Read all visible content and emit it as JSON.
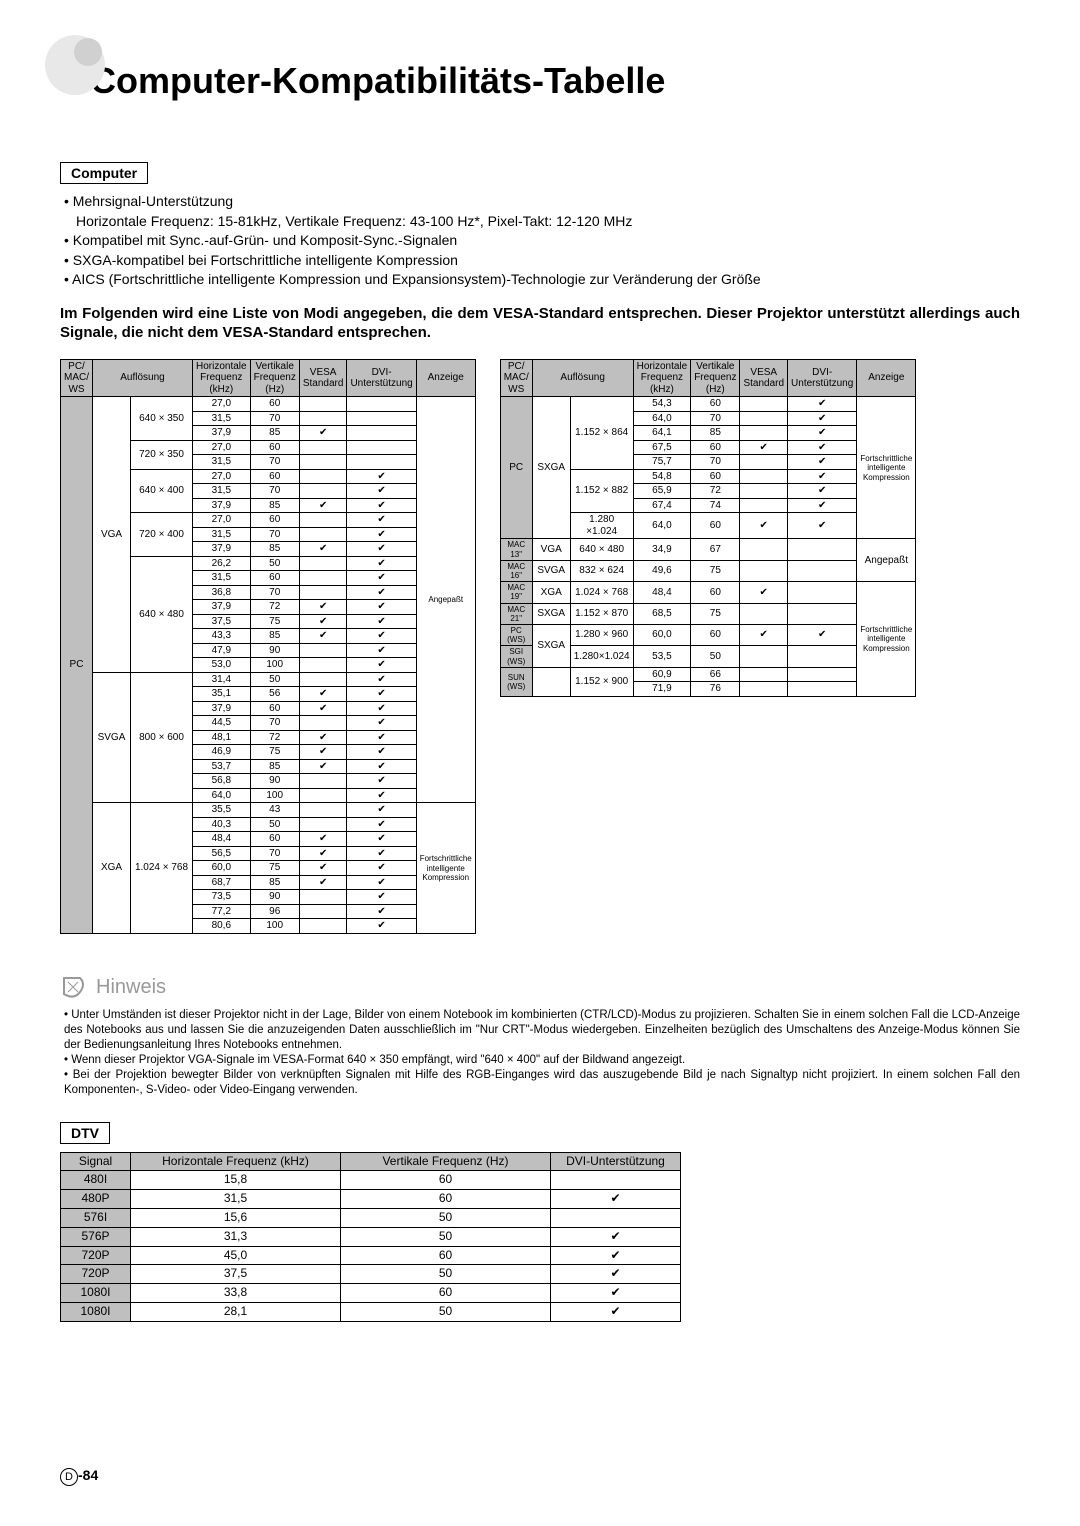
{
  "title": "Computer-Kompatibilitäts-Tabelle",
  "section_computer": "Computer",
  "bullets": {
    "b1": "Mehrsignal-Unterstützung",
    "b1sub": "Horizontale Frequenz: 15-81kHz, Vertikale Frequenz: 43-100 Hz*, Pixel-Takt: 12-120 MHz",
    "b2": "Kompatibel mit Sync.-auf-Grün- und Komposit-Sync.-Signalen",
    "b3": "SXGA-kompatibel bei Fortschrittliche intelligente Kompression",
    "b4": "AICS (Fortschrittliche intelligente Kompression und Expansionsystem)-Technologie zur Veränderung der Größe"
  },
  "bold_para": "Im Folgenden wird eine Liste von Modi angegeben, die dem VESA-Standard entsprechen. Dieser Projektor unterstützt allerdings auch Signale, die nicht dem VESA-Standard entsprechen.",
  "headers": {
    "h1": "PC/ MAC/ WS",
    "h2": "Auflösung",
    "h3": "Horizontale Frequenz (kHz)",
    "h4": "Vertikale Frequenz (Hz)",
    "h5": "VESA Standard",
    "h6": "DVI-Unterstützung",
    "h7": "Anzeige"
  },
  "t1": {
    "pc": "PC",
    "vga": "VGA",
    "svga": "SVGA",
    "xga": "XGA",
    "res1": "640 × 350",
    "res2": "720 × 350",
    "res3": "640 × 400",
    "res4": "720 × 400",
    "res5": "640 × 480",
    "res6": "800 × 600",
    "res7": "1.024 × 768",
    "anz1": "Angepaßt",
    "anz2": "Fortschrittliche intelligente Kompression",
    "rows": [
      [
        "27,0",
        "60",
        "",
        ""
      ],
      [
        "31,5",
        "70",
        "",
        ""
      ],
      [
        "37,9",
        "85",
        "✔",
        ""
      ],
      [
        "27,0",
        "60",
        "",
        ""
      ],
      [
        "31,5",
        "70",
        "",
        ""
      ],
      [
        "27,0",
        "60",
        "",
        "✔"
      ],
      [
        "31,5",
        "70",
        "",
        "✔"
      ],
      [
        "37,9",
        "85",
        "✔",
        "✔"
      ],
      [
        "27,0",
        "60",
        "",
        "✔"
      ],
      [
        "31,5",
        "70",
        "",
        "✔"
      ],
      [
        "37,9",
        "85",
        "✔",
        "✔"
      ],
      [
        "26,2",
        "50",
        "",
        "✔"
      ],
      [
        "31,5",
        "60",
        "",
        "✔"
      ],
      [
        "36,8",
        "70",
        "",
        "✔"
      ],
      [
        "37,9",
        "72",
        "✔",
        "✔"
      ],
      [
        "37,5",
        "75",
        "✔",
        "✔"
      ],
      [
        "43,3",
        "85",
        "✔",
        "✔"
      ],
      [
        "47,9",
        "90",
        "",
        "✔"
      ],
      [
        "53,0",
        "100",
        "",
        "✔"
      ],
      [
        "31,4",
        "50",
        "",
        "✔"
      ],
      [
        "35,1",
        "56",
        "✔",
        "✔"
      ],
      [
        "37,9",
        "60",
        "✔",
        "✔"
      ],
      [
        "44,5",
        "70",
        "",
        "✔"
      ],
      [
        "48,1",
        "72",
        "✔",
        "✔"
      ],
      [
        "46,9",
        "75",
        "✔",
        "✔"
      ],
      [
        "53,7",
        "85",
        "✔",
        "✔"
      ],
      [
        "56,8",
        "90",
        "",
        "✔"
      ],
      [
        "64,0",
        "100",
        "",
        "✔"
      ],
      [
        "35,5",
        "43",
        "",
        "✔"
      ],
      [
        "40,3",
        "50",
        "",
        "✔"
      ],
      [
        "48,4",
        "60",
        "✔",
        "✔"
      ],
      [
        "56,5",
        "70",
        "✔",
        "✔"
      ],
      [
        "60,0",
        "75",
        "✔",
        "✔"
      ],
      [
        "68,7",
        "85",
        "✔",
        "✔"
      ],
      [
        "73,5",
        "90",
        "",
        "✔"
      ],
      [
        "77,2",
        "96",
        "",
        "✔"
      ],
      [
        "80,6",
        "100",
        "",
        "✔"
      ]
    ]
  },
  "t2": {
    "pc": "PC",
    "sxga": "SXGA",
    "mac13": "MAC 13\"",
    "mac16": "MAC 16\"",
    "mac19": "MAC 19\"",
    "mac21": "MAC 21\"",
    "pcws": "PC (WS)",
    "sgiws": "SGI (WS)",
    "sunws": "SUN (WS)",
    "vga": "VGA",
    "svga": "SVGA",
    "xga": "XGA",
    "res1": "1.152 × 864",
    "res2": "1.152 × 882",
    "res3": "1.280 ×1.024",
    "res4": "640 × 480",
    "res5": "832 × 624",
    "res6": "1.024 × 768",
    "res7": "1.152 × 870",
    "res8": "1.280 × 960",
    "res9": "1.280×1.024",
    "res10": "1.152 × 900",
    "anz1": "Fortschrittliche intelligente Kompression",
    "anz2": "Angepaßt",
    "anz3": "Fortschrittliche intelligente Kompression",
    "rows_a": [
      [
        "54,3",
        "60",
        "",
        "✔"
      ],
      [
        "64,0",
        "70",
        "",
        "✔"
      ],
      [
        "64,1",
        "85",
        "",
        "✔"
      ],
      [
        "67,5",
        "60",
        "✔",
        "✔"
      ],
      [
        "75,7",
        "70",
        "",
        "✔"
      ],
      [
        "54,8",
        "60",
        "",
        "✔"
      ],
      [
        "65,9",
        "72",
        "",
        "✔"
      ],
      [
        "67,4",
        "74",
        "",
        "✔"
      ],
      [
        "64,0",
        "60",
        "✔",
        "✔"
      ]
    ],
    "mac_rows": [
      [
        "34,9",
        "67",
        "",
        ""
      ],
      [
        "49,6",
        "75",
        "",
        ""
      ],
      [
        "48,4",
        "60",
        "✔",
        ""
      ],
      [
        "68,5",
        "75",
        "",
        ""
      ]
    ],
    "ws_rows": [
      [
        "60,0",
        "60",
        "✔",
        "✔"
      ],
      [
        "53,5",
        "50",
        "",
        ""
      ],
      [
        "60,9",
        "66",
        "",
        ""
      ],
      [
        "71,9",
        "76",
        "",
        ""
      ]
    ]
  },
  "hinweis": "Hinweis",
  "notes": {
    "n1": "Unter Umständen ist dieser Projektor nicht in der Lage, Bilder von einem Notebook im kombinierten (CTR/LCD)-Modus zu projizieren. Schalten Sie in einem solchen Fall die LCD-Anzeige des Notebooks aus und lassen Sie die anzuzeigenden Daten ausschließlich im \"Nur CRT\"-Modus wiedergeben. Einzelheiten bezüglich des Umschaltens des Anzeige-Modus können Sie der Bedienungsanleitung Ihres Notebooks entnehmen.",
    "n2": "Wenn dieser Projektor VGA-Signale im VESA-Format 640 × 350 empfängt, wird \"640 × 400\" auf der Bildwand angezeigt.",
    "n3": "Bei der Projektion bewegter Bilder von verknüpften Signalen mit Hilfe des RGB-Einganges wird das auszugebende Bild je nach Signaltyp nicht projiziert. In einem solchen Fall den Komponenten-, S-Video- oder Video-Eingang verwenden."
  },
  "section_dtv": "DTV",
  "dtv_headers": {
    "h1": "Signal",
    "h2": "Horizontale Frequenz (kHz)",
    "h3": "Vertikale Frequenz (Hz)",
    "h4": "DVI-Unterstützung"
  },
  "dtv_rows": [
    [
      "480I",
      "15,8",
      "60",
      ""
    ],
    [
      "480P",
      "31,5",
      "60",
      "✔"
    ],
    [
      "576I",
      "15,6",
      "50",
      ""
    ],
    [
      "576P",
      "31,3",
      "50",
      "✔"
    ],
    [
      "720P",
      "45,0",
      "60",
      "✔"
    ],
    [
      "720P",
      "37,5",
      "50",
      "✔"
    ],
    [
      "1080I",
      "33,8",
      "60",
      "✔"
    ],
    [
      "1080I",
      "28,1",
      "50",
      "✔"
    ]
  ],
  "page": "-84",
  "page_d": "D"
}
